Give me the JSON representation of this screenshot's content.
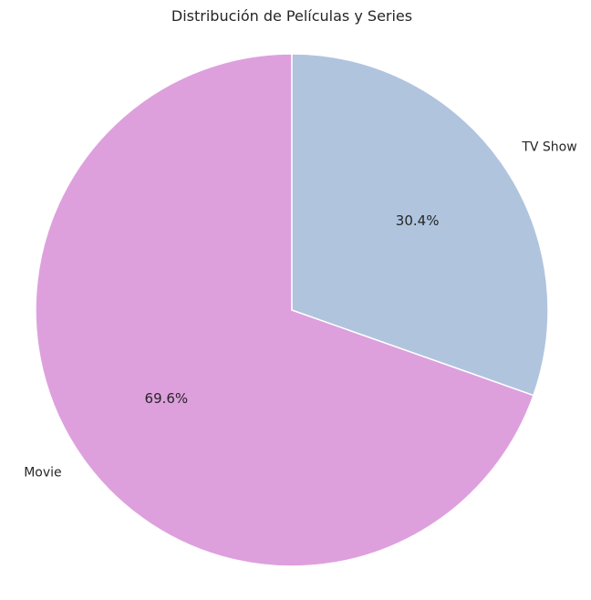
{
  "chart_data": {
    "type": "pie",
    "title": "Distribución de Películas y Series",
    "categories": [
      "Movie",
      "TV Show"
    ],
    "values": [
      69.6,
      30.4
    ],
    "percent_labels": [
      "69.6%",
      "30.4%"
    ],
    "colors": [
      "#dda0dd",
      "#b0c4de"
    ],
    "start_angle_deg": 90,
    "direction": "counterclockwise",
    "legend": "none"
  }
}
